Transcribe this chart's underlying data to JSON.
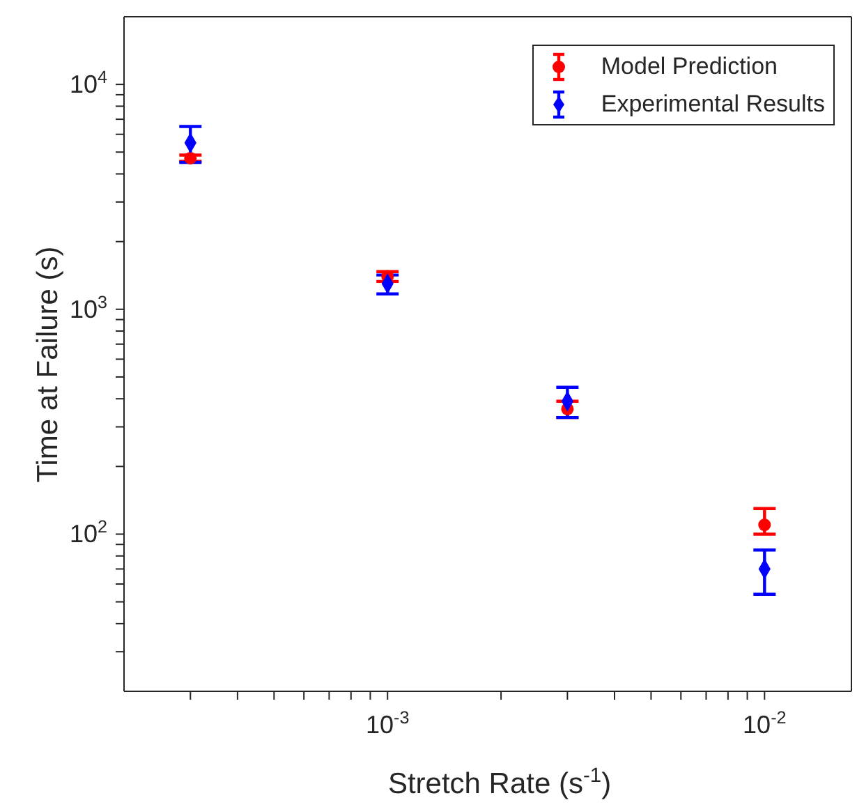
{
  "chart_data": {
    "type": "scatter",
    "xlabel": "Stretch Rate (s$^{-1}$)",
    "ylabel": "Time at Failure (s)",
    "log": "xy",
    "grid": false,
    "legend": "top right",
    "x": [
      0.0003,
      0.001,
      0.003,
      0.01
    ],
    "xlim": [
      0.0002,
      0.017
    ],
    "xticks": [
      {
        "value": 0.0003,
        "label": null
      },
      {
        "value": 0.0004,
        "label": null
      },
      {
        "value": 0.0005,
        "label": null
      },
      {
        "value": 0.0006,
        "label": null
      },
      {
        "value": 0.0007,
        "label": null
      },
      {
        "value": 0.0008,
        "label": null
      },
      {
        "value": 0.0009,
        "label": null
      },
      {
        "value": 0.001,
        "label": "10$^{-3}$"
      },
      {
        "value": 0.002,
        "label": null
      },
      {
        "value": 0.003,
        "label": null
      },
      {
        "value": 0.004,
        "label": null
      },
      {
        "value": 0.005,
        "label": null
      },
      {
        "value": 0.006,
        "label": null
      },
      {
        "value": 0.007,
        "label": null
      },
      {
        "value": 0.008,
        "label": null
      },
      {
        "value": 0.009,
        "label": null
      },
      {
        "value": 0.01,
        "label": "10$^{-2}$"
      }
    ],
    "ylim": [
      20,
      20000
    ],
    "yticks": [
      {
        "value": 30,
        "label": null
      },
      {
        "value": 40,
        "label": null
      },
      {
        "value": 50,
        "label": null
      },
      {
        "value": 60,
        "label": null
      },
      {
        "value": 70,
        "label": null
      },
      {
        "value": 80,
        "label": null
      },
      {
        "value": 90,
        "label": null
      },
      {
        "value": 100,
        "label": "10$^{2}$"
      },
      {
        "value": 200,
        "label": null
      },
      {
        "value": 300,
        "label": null
      },
      {
        "value": 400,
        "label": null
      },
      {
        "value": 500,
        "label": null
      },
      {
        "value": 600,
        "label": null
      },
      {
        "value": 700,
        "label": null
      },
      {
        "value": 800,
        "label": null
      },
      {
        "value": 900,
        "label": null
      },
      {
        "value": 1000,
        "label": "10$^{3}$"
      },
      {
        "value": 2000,
        "label": null
      },
      {
        "value": 3000,
        "label": null
      },
      {
        "value": 4000,
        "label": null
      },
      {
        "value": 5000,
        "label": null
      },
      {
        "value": 6000,
        "label": null
      },
      {
        "value": 7000,
        "label": null
      },
      {
        "value": 8000,
        "label": null
      },
      {
        "value": 9000,
        "label": null
      },
      {
        "value": 10000,
        "label": "10$^{4}$"
      }
    ],
    "series": [
      {
        "name": "Model Prediction",
        "color": "#ff0000",
        "marker": "circle",
        "values": [
          4700,
          1400,
          360,
          110
        ],
        "errors": [
          [
            4550,
            4850
          ],
          [
            1330,
            1470
          ],
          [
            330,
            390
          ],
          [
            100,
            130
          ]
        ]
      },
      {
        "name": "Experimental Results",
        "color": "#0000ff",
        "marker": "diamond",
        "values": [
          5500,
          1300,
          390,
          70
        ],
        "errors": [
          [
            4500,
            6500
          ],
          [
            1170,
            1420
          ],
          [
            330,
            450
          ],
          [
            54,
            85
          ]
        ]
      }
    ]
  }
}
